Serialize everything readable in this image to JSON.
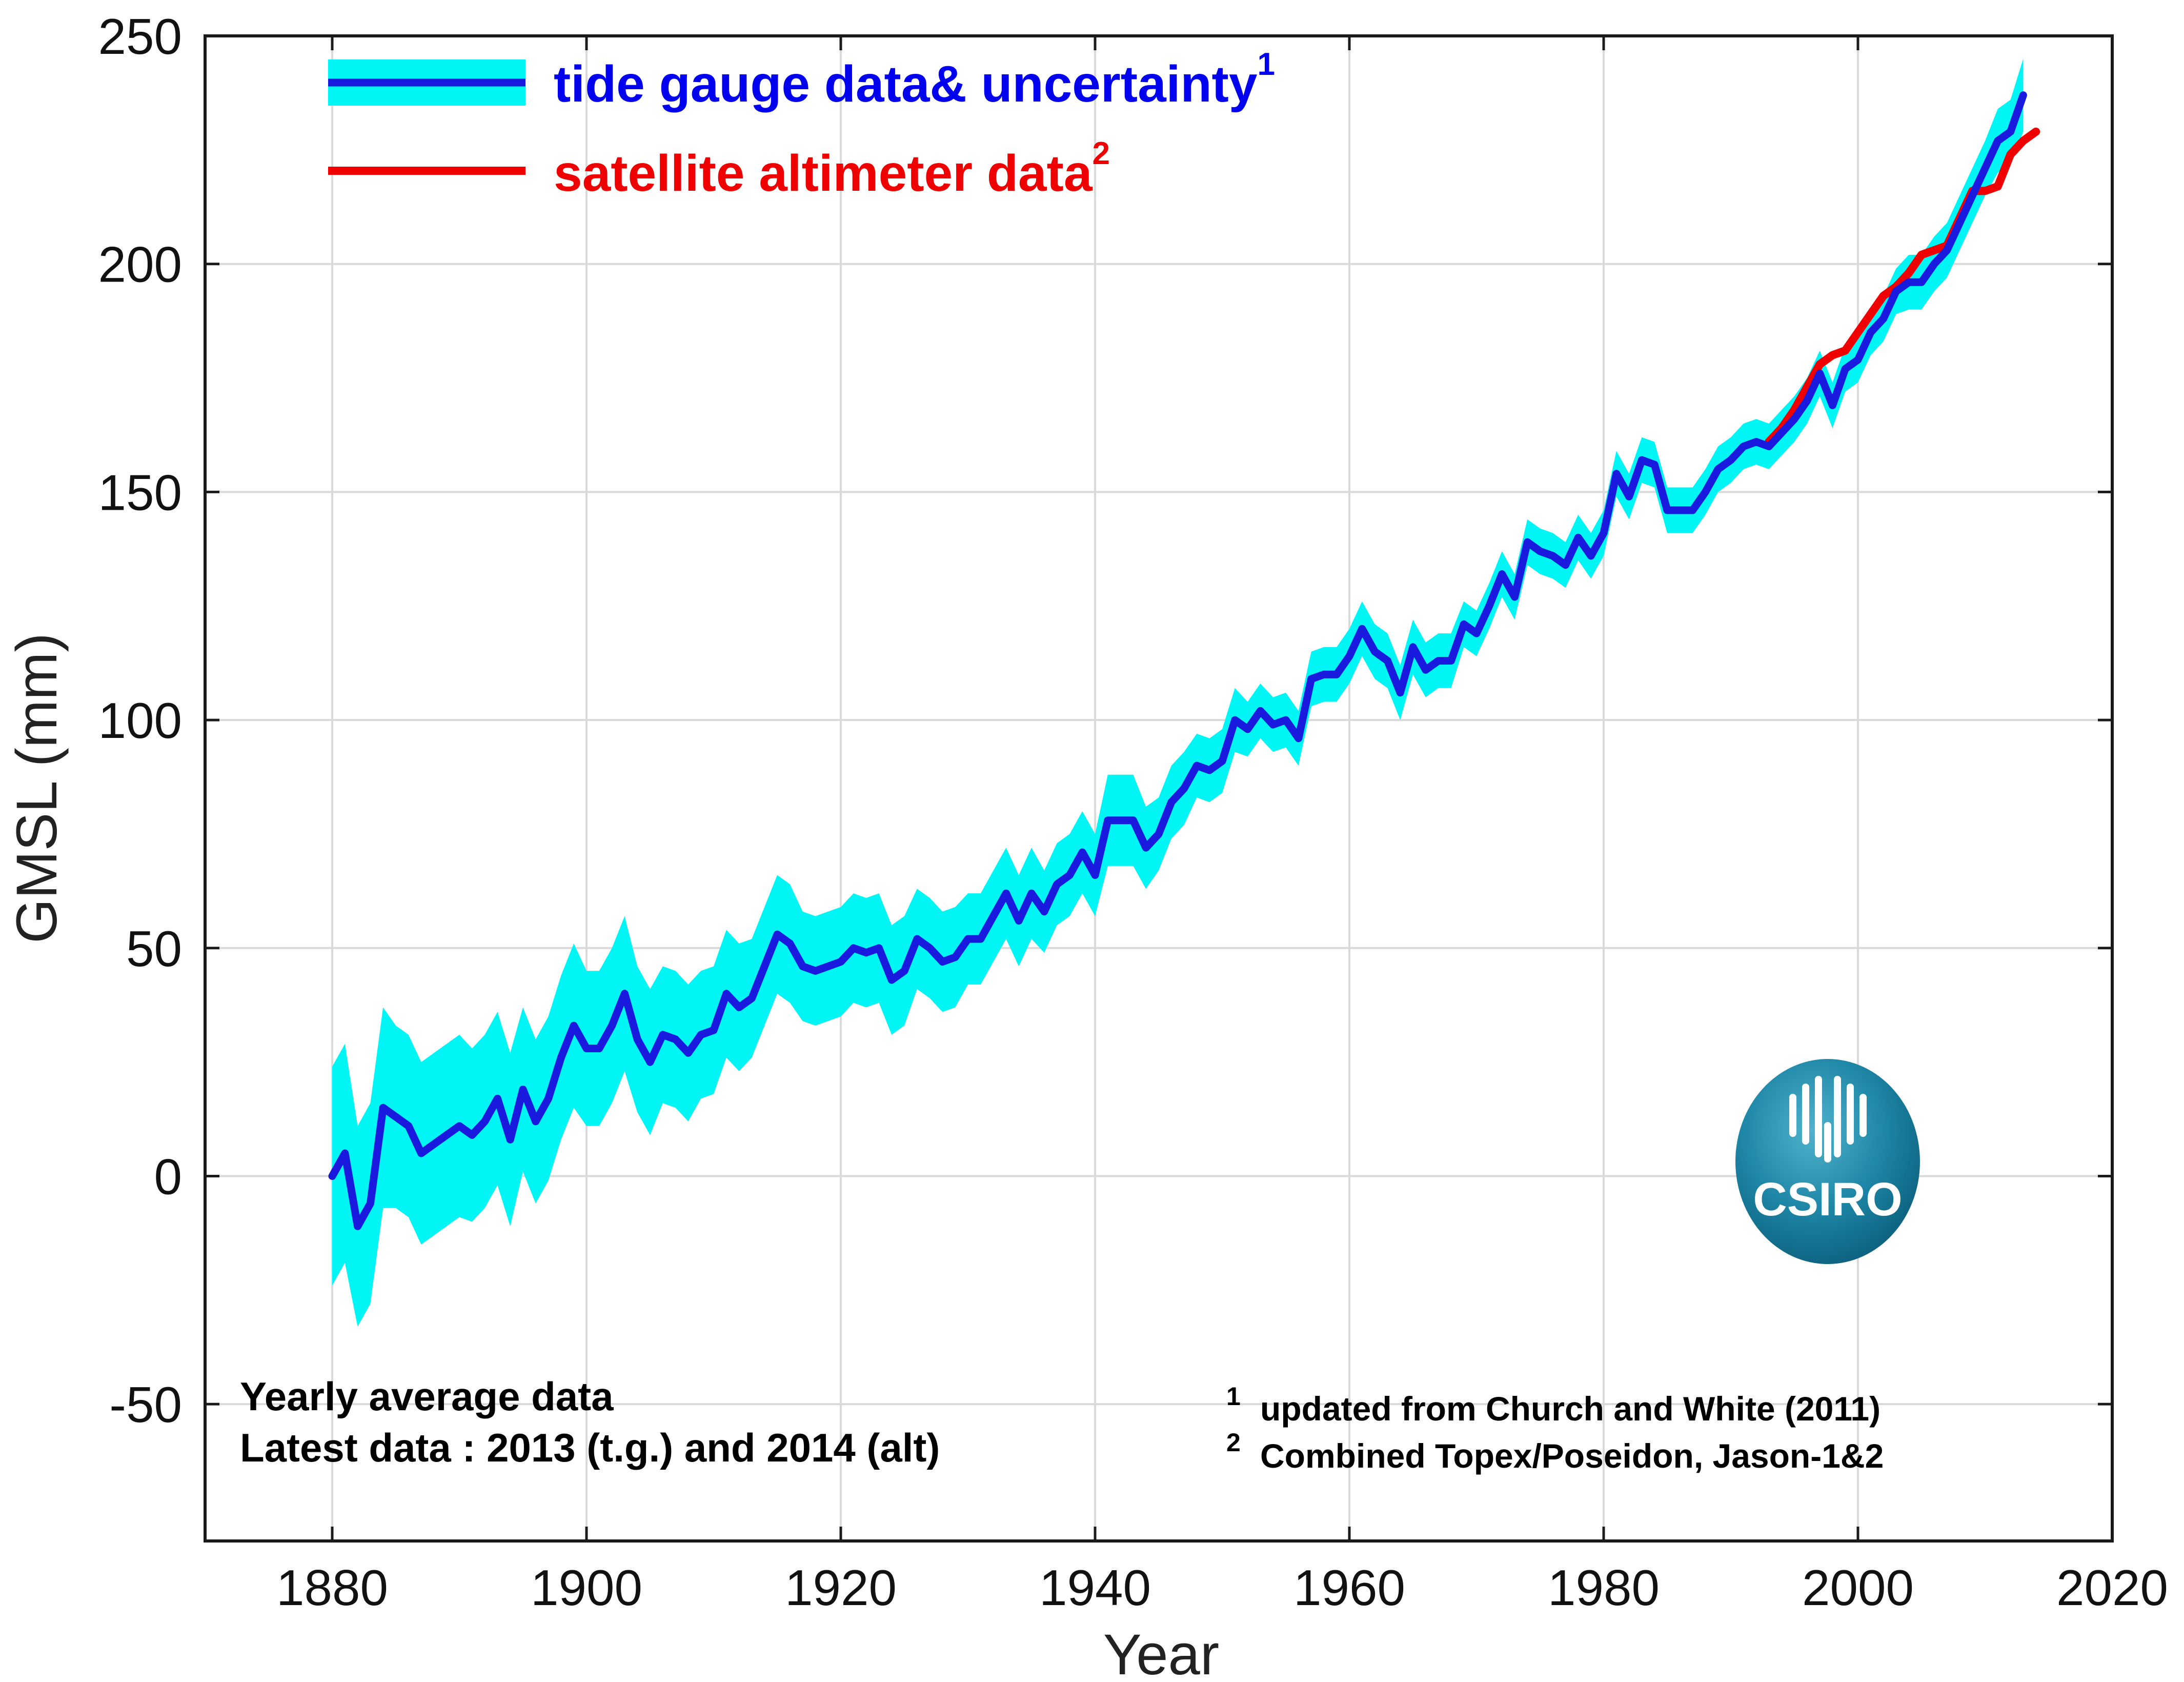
{
  "chart_data": {
    "type": "line",
    "xlabel": "Year",
    "ylabel": "GMSL (mm)",
    "xlim": [
      1870,
      2020
    ],
    "ylim": [
      -80,
      250
    ],
    "xticks": [
      "1880",
      "1900",
      "1920",
      "1940",
      "1960",
      "1980",
      "2000",
      "2020"
    ],
    "yticks": [
      "-50",
      "0",
      "50",
      "100",
      "150",
      "200",
      "250"
    ],
    "grid": true,
    "legend_position": "top-left",
    "colors": {
      "tide_line": "#1a1adf",
      "uncertainty_fill": "#00f5f5",
      "satellite_line": "#f00000",
      "legend_blue_text": "#0000ee",
      "legend_red_text": "#ee0000",
      "grid": "#d9d9d9"
    },
    "series": [
      {
        "name": "tide gauge data& uncertainty",
        "superscript": "1",
        "x": [
          1880,
          1881,
          1882,
          1883,
          1884,
          1885,
          1886,
          1887,
          1888,
          1889,
          1890,
          1891,
          1892,
          1893,
          1894,
          1895,
          1896,
          1897,
          1898,
          1899,
          1900,
          1901,
          1902,
          1903,
          1904,
          1905,
          1906,
          1907,
          1908,
          1909,
          1910,
          1911,
          1912,
          1913,
          1914,
          1915,
          1916,
          1917,
          1918,
          1919,
          1920,
          1921,
          1922,
          1923,
          1924,
          1925,
          1926,
          1927,
          1928,
          1929,
          1930,
          1931,
          1932,
          1933,
          1934,
          1935,
          1936,
          1937,
          1938,
          1939,
          1940,
          1941,
          1942,
          1943,
          1944,
          1945,
          1946,
          1947,
          1948,
          1949,
          1950,
          1951,
          1952,
          1953,
          1954,
          1955,
          1956,
          1957,
          1958,
          1959,
          1960,
          1961,
          1962,
          1963,
          1964,
          1965,
          1966,
          1967,
          1968,
          1969,
          1970,
          1971,
          1972,
          1973,
          1974,
          1975,
          1976,
          1977,
          1978,
          1979,
          1980,
          1981,
          1982,
          1983,
          1984,
          1985,
          1986,
          1987,
          1988,
          1989,
          1990,
          1991,
          1992,
          1993,
          1994,
          1995,
          1996,
          1997,
          1998,
          1999,
          2000,
          2001,
          2002,
          2003,
          2004,
          2005,
          2006,
          2007,
          2008,
          2009,
          2010,
          2011,
          2012,
          2013
        ],
        "values": [
          0,
          5,
          -11,
          -6,
          15,
          13,
          11,
          5,
          7,
          9,
          11,
          9,
          12,
          17,
          8,
          19,
          12,
          17,
          26,
          33,
          28,
          28,
          33,
          40,
          30,
          25,
          31,
          30,
          27,
          31,
          32,
          40,
          37,
          39,
          46,
          53,
          51,
          46,
          45,
          46,
          47,
          50,
          49,
          50,
          43,
          45,
          52,
          50,
          47,
          48,
          52,
          52,
          57,
          62,
          56,
          62,
          58,
          64,
          66,
          71,
          66,
          78,
          78,
          78,
          72,
          75,
          82,
          85,
          90,
          89,
          91,
          100,
          98,
          102,
          99,
          100,
          96,
          109,
          110,
          110,
          114,
          120,
          115,
          113,
          106,
          116,
          111,
          113,
          113,
          121,
          119,
          125,
          132,
          127,
          139,
          137,
          136,
          134,
          140,
          136,
          141,
          154,
          149,
          157,
          156,
          146,
          146,
          146,
          150,
          155,
          157,
          160,
          161,
          160,
          163,
          166,
          170,
          176,
          169,
          177,
          179,
          185,
          188,
          194,
          196,
          196,
          200,
          203,
          209,
          215,
          221,
          227,
          229,
          237
        ],
        "unc": [
          24,
          24,
          22,
          22,
          22,
          20,
          20,
          20,
          20,
          20,
          20,
          19,
          19,
          19,
          19,
          18,
          18,
          18,
          18,
          18,
          17,
          17,
          17,
          17,
          16,
          16,
          15,
          15,
          15,
          14,
          14,
          14,
          14,
          13,
          13,
          13,
          13,
          12,
          12,
          12,
          12,
          12,
          12,
          12,
          12,
          12,
          11,
          11,
          11,
          11,
          10,
          10,
          10,
          10,
          10,
          10,
          9,
          9,
          9,
          9,
          9,
          10,
          10,
          10,
          9,
          8,
          8,
          8,
          7,
          7,
          7,
          7,
          6,
          6,
          6,
          6,
          6,
          6,
          6,
          6,
          6,
          6,
          6,
          6,
          6,
          6,
          6,
          6,
          6,
          5,
          5,
          5,
          5,
          5,
          5,
          5,
          5,
          5,
          5,
          5,
          5,
          5,
          5,
          5,
          5,
          5,
          5,
          5,
          5,
          5,
          5,
          5,
          5,
          5,
          5,
          5,
          5,
          5,
          5,
          5,
          5,
          5,
          5,
          5,
          6,
          6,
          6,
          6,
          6,
          6,
          6,
          7,
          7,
          8
        ]
      },
      {
        "name": "satellite altimeter data",
        "superscript": "2",
        "x": [
          1993,
          1994,
          1995,
          1996,
          1997,
          1998,
          1999,
          2000,
          2001,
          2002,
          2003,
          2004,
          2005,
          2006,
          2007,
          2008,
          2009,
          2010,
          2011,
          2012,
          2013,
          2014
        ],
        "values": [
          161,
          164,
          168,
          173,
          178,
          180,
          181,
          185,
          189,
          193,
          195,
          198,
          202,
          203,
          204,
          210,
          216,
          216,
          217,
          224,
          227,
          229
        ]
      }
    ],
    "annotations": {
      "left_line1": "Yearly average data",
      "left_line2": "Latest data : 2013 (t.g.) and 2014 (alt)",
      "foot1_mark": "1",
      "foot1_text": "updated from Church and White (2011)",
      "foot2_mark": "2",
      "foot2_text": "Combined Topex/Poseidon, Jason-1&2"
    },
    "logo_text": "CSIRO"
  }
}
